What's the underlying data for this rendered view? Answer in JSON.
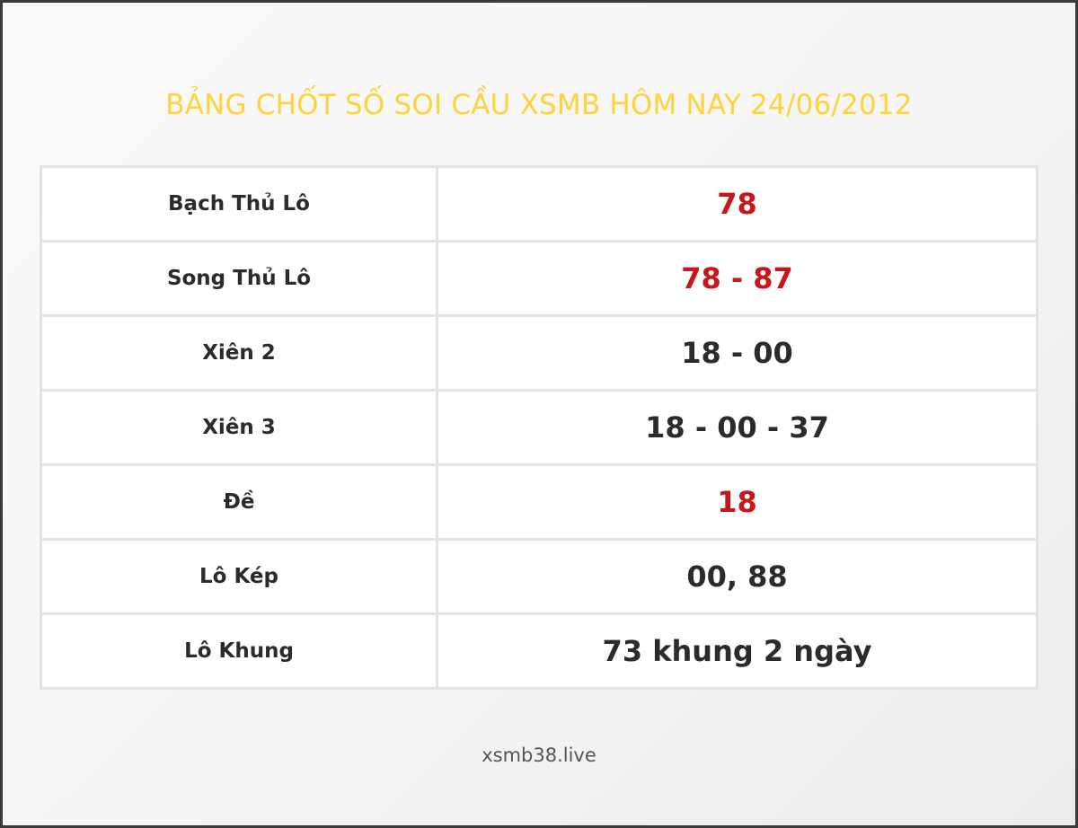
{
  "title": "BẢNG CHỐT SỐ SOI CẦU XSMB HÔM NAY 24/06/2012",
  "colors": {
    "title": "#fdd33b",
    "highlight": "#c8161d",
    "text": "#2b2b2b"
  },
  "rows": [
    {
      "label": "Bạch Thủ Lô",
      "value": "78",
      "highlight": true
    },
    {
      "label": "Song Thủ Lô",
      "value": "78 - 87",
      "highlight": true
    },
    {
      "label": "Xiên 2",
      "value": "18 - 00",
      "highlight": false
    },
    {
      "label": "Xiên 3",
      "value": "18 - 00 - 37",
      "highlight": false
    },
    {
      "label": "Đề",
      "value": "18",
      "highlight": true
    },
    {
      "label": "Lô Kép",
      "value": "00, 88",
      "highlight": false
    },
    {
      "label": "Lô Khung",
      "value": "73 khung 2 ngày",
      "highlight": false
    }
  ],
  "footer": "xsmb38.live"
}
